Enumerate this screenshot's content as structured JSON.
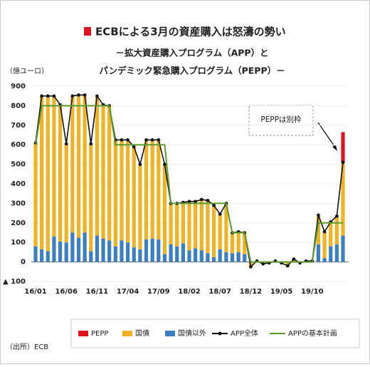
{
  "chart_data": {
    "type": "stacked-bar-line",
    "title": "ECBによる3月の資産購入は怒濤の勢い",
    "subtitle": [
      "－拡大資産購入プログラム（APP）と",
      "パンデミック緊急購入プログラム（PEPP）－"
    ],
    "y_label": "（億ユーロ）",
    "source": "（出所）ECB",
    "annotation": "PEPPは別枠",
    "categories": [
      "16/01",
      null,
      null,
      null,
      null,
      "16/06",
      null,
      null,
      null,
      null,
      "16/11",
      null,
      null,
      null,
      null,
      "17/04",
      null,
      null,
      null,
      null,
      "17/09",
      null,
      null,
      null,
      null,
      "18/02",
      null,
      null,
      null,
      null,
      "18/07",
      null,
      null,
      null,
      null,
      "18/12",
      null,
      null,
      null,
      null,
      "19/05",
      null,
      null,
      null,
      null,
      "19/10",
      null,
      null,
      null,
      null,
      null
    ],
    "ylim": [
      -100,
      900
    ],
    "yticks": [
      {
        "value": -100,
        "label": "▲ 100"
      },
      0,
      100,
      200,
      300,
      400,
      500,
      600,
      700,
      800,
      900
    ],
    "series": [
      {
        "name": "PEPP",
        "color": "#e0141e",
        "kind": "bar",
        "values": [
          null,
          null,
          null,
          null,
          null,
          null,
          null,
          null,
          null,
          null,
          null,
          null,
          null,
          null,
          null,
          null,
          null,
          null,
          null,
          null,
          null,
          null,
          null,
          null,
          null,
          null,
          null,
          null,
          null,
          null,
          null,
          null,
          null,
          null,
          null,
          null,
          null,
          null,
          null,
          null,
          null,
          null,
          null,
          null,
          null,
          null,
          null,
          null,
          null,
          null,
          155
        ]
      },
      {
        "name": "国債",
        "color": "#efb325",
        "kind": "bar",
        "values": [
          530,
          785,
          795,
          720,
          700,
          505,
          700,
          730,
          705,
          550,
          715,
          685,
          690,
          545,
          515,
          525,
          515,
          435,
          510,
          505,
          510,
          460,
          210,
          220,
          210,
          250,
          240,
          260,
          270,
          265,
          180,
          250,
          105,
          105,
          110,
          -25,
          5,
          -10,
          -5,
          5,
          -5,
          -20,
          15,
          -5,
          5,
          5,
          150,
          135,
          125,
          145,
          375
        ]
      },
      {
        "name": "国債以外",
        "color": "#3b7fc0",
        "kind": "bar",
        "values": [
          80,
          65,
          55,
          130,
          105,
          100,
          150,
          125,
          150,
          55,
          135,
          120,
          110,
          80,
          110,
          100,
          75,
          65,
          115,
          120,
          115,
          40,
          90,
          80,
          95,
          60,
          70,
          60,
          45,
          25,
          65,
          50,
          45,
          50,
          40,
          0,
          0,
          0,
          0,
          0,
          0,
          0,
          0,
          0,
          0,
          0,
          90,
          20,
          80,
          90,
          135
        ]
      },
      {
        "name": "APP全体",
        "color": "#111111",
        "kind": "line-marker",
        "values": [
          610,
          850,
          850,
          850,
          805,
          605,
          850,
          855,
          855,
          605,
          850,
          805,
          800,
          625,
          625,
          625,
          590,
          500,
          625,
          625,
          625,
          500,
          300,
          300,
          305,
          310,
          310,
          320,
          315,
          290,
          245,
          300,
          150,
          155,
          150,
          -25,
          5,
          -10,
          -5,
          5,
          -5,
          -20,
          15,
          -5,
          5,
          5,
          240,
          155,
          205,
          235,
          510
        ]
      },
      {
        "name": "APPの基本計画",
        "color": "#5b9a2c",
        "kind": "line",
        "values": [
          600,
          800,
          800,
          800,
          800,
          800,
          800,
          800,
          800,
          800,
          800,
          800,
          800,
          600,
          600,
          600,
          600,
          600,
          600,
          600,
          600,
          600,
          300,
          300,
          300,
          300,
          300,
          300,
          300,
          300,
          300,
          300,
          150,
          150,
          150,
          0,
          0,
          0,
          0,
          0,
          0,
          0,
          0,
          0,
          0,
          0,
          200,
          200,
          200,
          200,
          200
        ]
      }
    ]
  }
}
